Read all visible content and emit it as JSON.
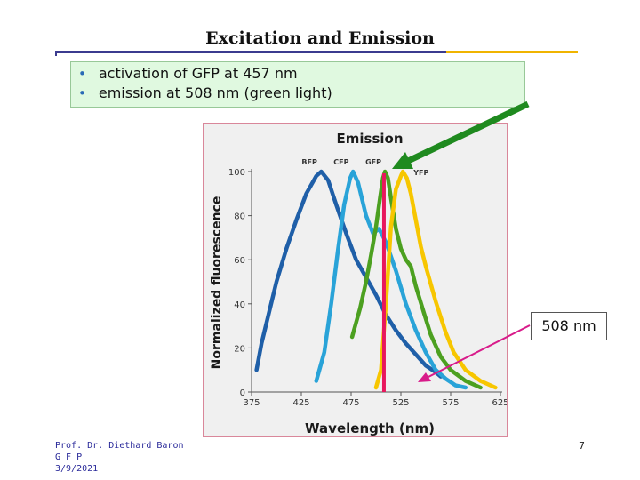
{
  "slide": {
    "title": "Excitation and Emission",
    "bullets": [
      "activation of GFP at 457 nm",
      "emission at 508 nm (green light)"
    ],
    "callout": "508 nm",
    "footer": {
      "author": "Prof. Dr. Diethard Baron",
      "topic": "G F P",
      "date": "3/9/2021"
    },
    "page_number": "7"
  },
  "colors": {
    "bfp": "#1f5fa8",
    "cfp": "#29a3d8",
    "gfp": "#4ca020",
    "yfp": "#f7c600",
    "marker": "#e8175d",
    "arrow_green": "#1f8a1f",
    "arrow_magenta": "#d81b8a"
  },
  "chart_data": {
    "type": "line",
    "title": "Emission",
    "xlabel": "Wavelength (nm)",
    "ylabel": "Normalized fluorescence",
    "xlim": [
      375,
      625
    ],
    "ylim": [
      0,
      100
    ],
    "xticks": [
      375,
      425,
      475,
      525,
      575,
      625
    ],
    "yticks": [
      0,
      20,
      40,
      60,
      80,
      100
    ],
    "grid": false,
    "series": [
      {
        "name": "BFP",
        "color": "#1f5fa8",
        "points": [
          [
            380,
            10
          ],
          [
            385,
            22
          ],
          [
            392,
            35
          ],
          [
            400,
            50
          ],
          [
            410,
            65
          ],
          [
            420,
            78
          ],
          [
            430,
            90
          ],
          [
            440,
            98
          ],
          [
            445,
            100
          ],
          [
            452,
            96
          ],
          [
            460,
            85
          ],
          [
            470,
            72
          ],
          [
            480,
            60
          ],
          [
            490,
            52
          ],
          [
            500,
            44
          ],
          [
            510,
            35
          ],
          [
            520,
            28
          ],
          [
            530,
            22
          ],
          [
            540,
            17
          ],
          [
            550,
            12
          ],
          [
            560,
            9
          ],
          [
            565,
            7
          ]
        ]
      },
      {
        "name": "CFP",
        "color": "#29a3d8",
        "points": [
          [
            440,
            5
          ],
          [
            448,
            18
          ],
          [
            455,
            40
          ],
          [
            462,
            65
          ],
          [
            468,
            85
          ],
          [
            474,
            97
          ],
          [
            477,
            100
          ],
          [
            482,
            95
          ],
          [
            490,
            80
          ],
          [
            497,
            72
          ],
          [
            503,
            74
          ],
          [
            510,
            68
          ],
          [
            520,
            55
          ],
          [
            530,
            40
          ],
          [
            540,
            28
          ],
          [
            550,
            18
          ],
          [
            560,
            10
          ],
          [
            570,
            6
          ],
          [
            580,
            3
          ],
          [
            590,
            2
          ]
        ]
      },
      {
        "name": "GFP",
        "color": "#4ca020",
        "points": [
          [
            476,
            25
          ],
          [
            484,
            38
          ],
          [
            490,
            50
          ],
          [
            495,
            62
          ],
          [
            500,
            75
          ],
          [
            504,
            88
          ],
          [
            507,
            97
          ],
          [
            509,
            100
          ],
          [
            512,
            97
          ],
          [
            515,
            88
          ],
          [
            520,
            74
          ],
          [
            525,
            65
          ],
          [
            530,
            60
          ],
          [
            535,
            57
          ],
          [
            540,
            48
          ],
          [
            548,
            36
          ],
          [
            555,
            26
          ],
          [
            565,
            16
          ],
          [
            575,
            10
          ],
          [
            590,
            5
          ],
          [
            605,
            2
          ]
        ]
      },
      {
        "name": "YFP",
        "color": "#f7c600",
        "points": [
          [
            500,
            2
          ],
          [
            505,
            10
          ],
          [
            510,
            40
          ],
          [
            515,
            75
          ],
          [
            520,
            92
          ],
          [
            525,
            98
          ],
          [
            527,
            100
          ],
          [
            531,
            97
          ],
          [
            535,
            90
          ],
          [
            540,
            78
          ],
          [
            545,
            66
          ],
          [
            550,
            57
          ],
          [
            555,
            49
          ],
          [
            560,
            41
          ],
          [
            565,
            34
          ],
          [
            570,
            27
          ],
          [
            578,
            18
          ],
          [
            590,
            10
          ],
          [
            605,
            5
          ],
          [
            620,
            2
          ]
        ]
      }
    ],
    "markers": [
      {
        "x": 508,
        "label": "508 nm"
      }
    ]
  }
}
